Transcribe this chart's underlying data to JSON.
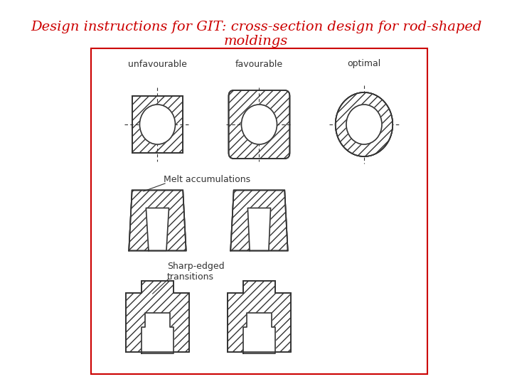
{
  "title_line1": "Design instructions for GIT: cross-section design for rod-shaped",
  "title_line2": "moldings",
  "title_color": "#cc0000",
  "title_fontsize": 14,
  "border_color": "#cc0000",
  "hatch_color": "#888888",
  "line_color": "#333333",
  "bg_color": "#ffffff",
  "labels_row1": [
    "unfavourable",
    "favourable",
    "optimal"
  ],
  "label_row2": "Melt accumulations",
  "label_row3": "Sharp-edged\ntransitions"
}
